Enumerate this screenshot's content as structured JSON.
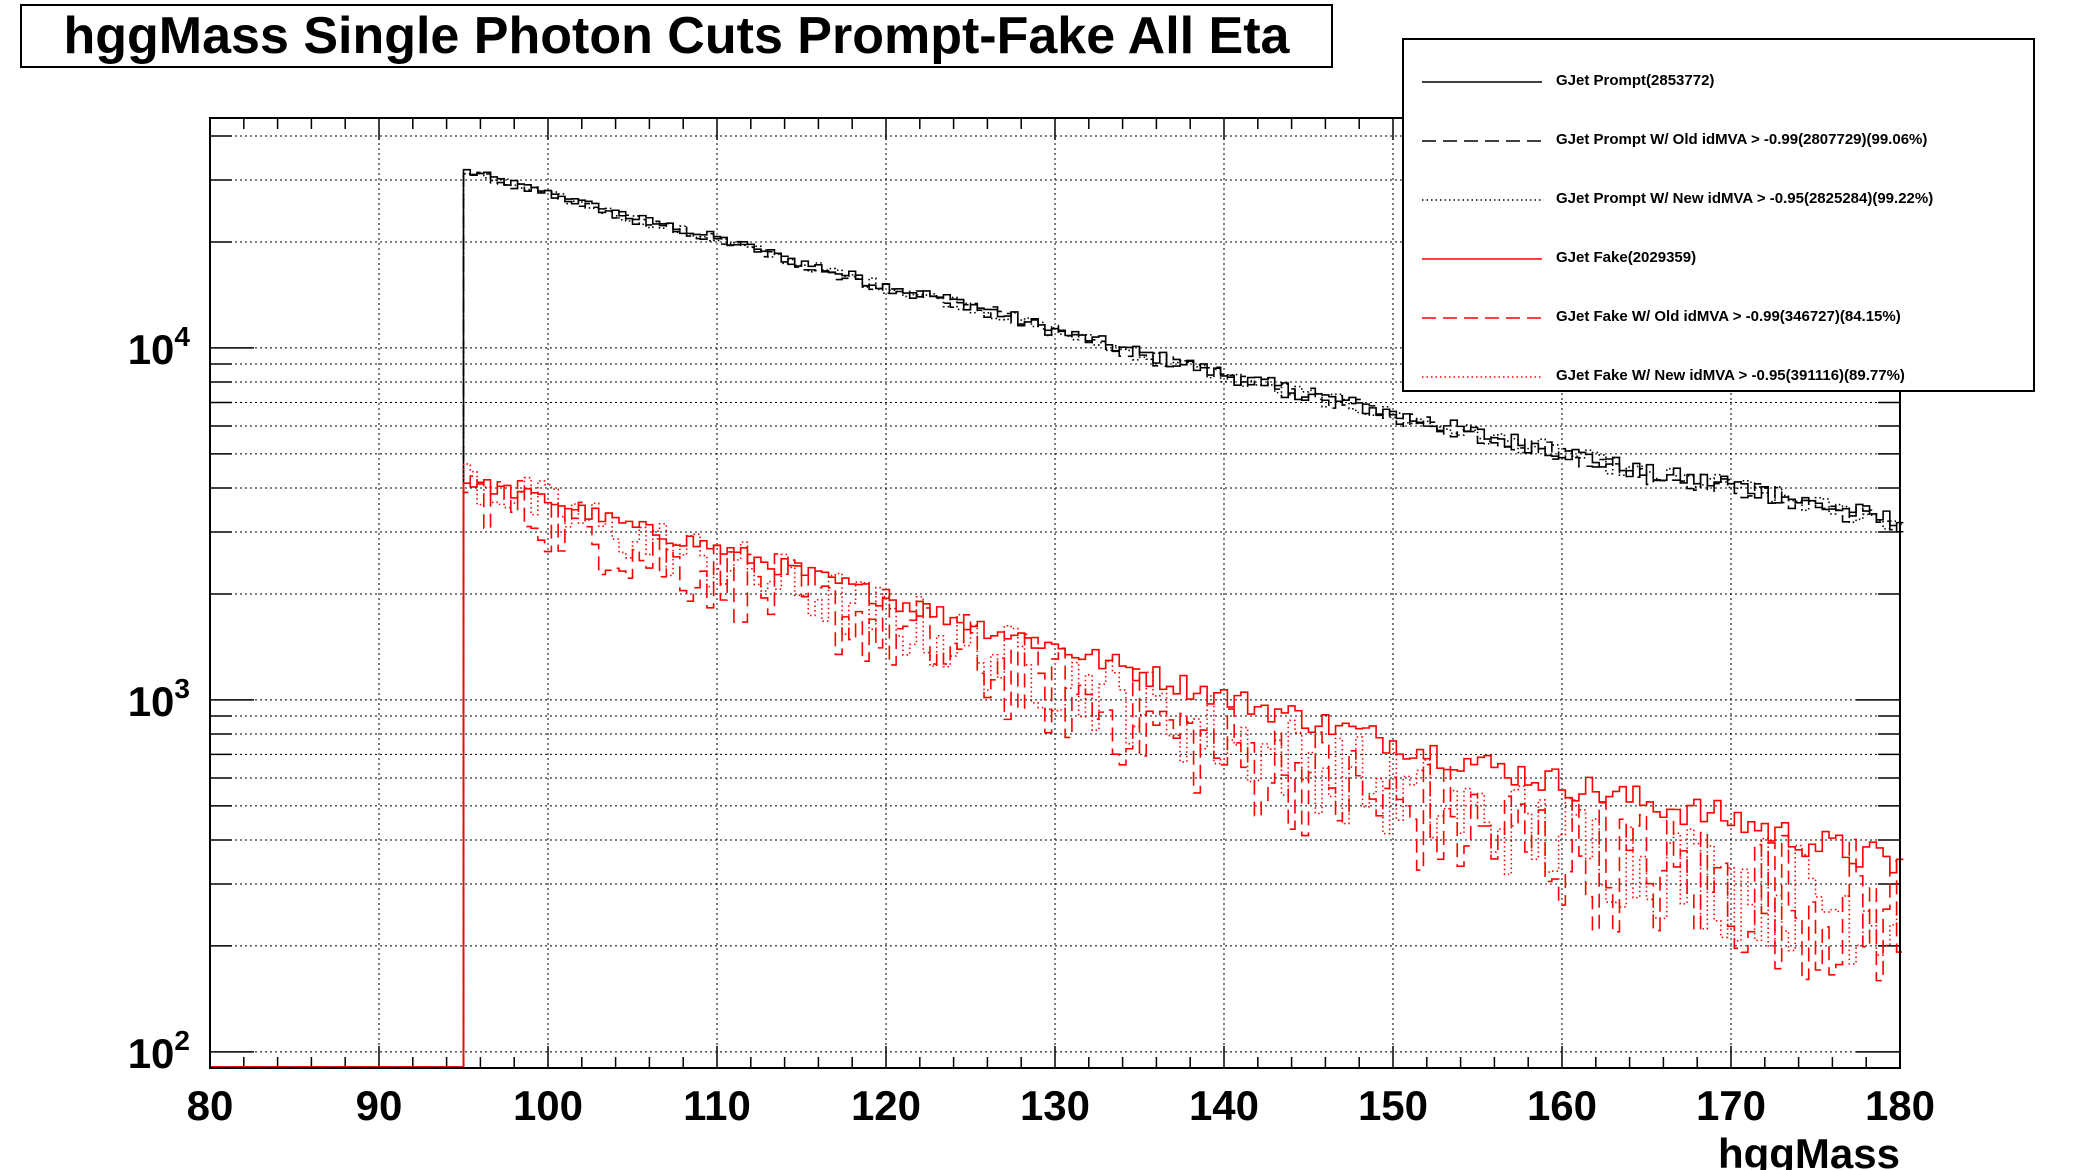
{
  "title": "hggMass Single Photon Cuts Prompt-Fake All Eta",
  "legend": [
    {
      "label": "GJet Prompt(2853772)",
      "color": "#000000",
      "dash": "solid"
    },
    {
      "label": "GJet Prompt W/ Old idMVA > -0.99(2807729)(99.06%)",
      "color": "#000000",
      "dash": "dashed"
    },
    {
      "label": "GJet Prompt W/ New idMVA > -0.95(2825284)(99.22%)",
      "color": "#000000",
      "dash": "dotted"
    },
    {
      "label": "GJet Fake(2029359)",
      "color": "#ff0000",
      "dash": "solid"
    },
    {
      "label": "GJet Fake W/ Old idMVA > -0.99(346727)(84.15%)",
      "color": "#ff0000",
      "dash": "dashed"
    },
    {
      "label": "GJet Fake W/ New idMVA > -0.95(391116)(89.77%)",
      "color": "#ff0000",
      "dash": "dotted"
    }
  ],
  "chart_data": {
    "type": "line",
    "title": "hggMass Single Photon Cuts Prompt-Fake All Eta",
    "xlabel": "hggMass",
    "ylabel": "",
    "xlim": [
      80,
      180
    ],
    "ylim": [
      90,
      45000
    ],
    "yscale": "log",
    "grid": true,
    "legend_position": "top-right",
    "x_ticks": [
      "80",
      "90",
      "100",
      "110",
      "120",
      "130",
      "140",
      "150",
      "160",
      "170",
      "180"
    ],
    "y_ticks": [
      {
        "base": "10",
        "exp": "2",
        "value": 100
      },
      {
        "base": "10",
        "exp": "3",
        "value": 1000
      },
      {
        "base": "10",
        "exp": "4",
        "value": 10000
      }
    ],
    "histogram_range": [
      95,
      180
    ],
    "x": [
      95,
      100,
      105,
      110,
      115,
      120,
      125,
      130,
      135,
      140,
      145,
      150,
      155,
      160,
      165,
      170,
      175,
      180
    ],
    "series": [
      {
        "name": "GJet Prompt(2853772)",
        "color": "#000000",
        "dash": "solid",
        "values": [
          32000,
          27500,
          23500,
          20500,
          17500,
          15000,
          13300,
          11200,
          9700,
          8400,
          7400,
          6500,
          5700,
          5100,
          4400,
          4100,
          3600,
          3200
        ]
      },
      {
        "name": "GJet Prompt W/ Old idMVA > -0.99(2807729)(99.06%)",
        "color": "#000000",
        "dash": "dashed",
        "values": [
          31700,
          27200,
          23300,
          20300,
          17300,
          14850,
          13150,
          11100,
          9600,
          8300,
          7330,
          6440,
          5650,
          5050,
          4360,
          4060,
          3560,
          3170
        ]
      },
      {
        "name": "GJet Prompt W/ New idMVA > -0.95(2825284)(99.22%)",
        "color": "#000000",
        "dash": "dotted",
        "values": [
          31750,
          27290,
          23330,
          20340,
          17360,
          14880,
          13200,
          11120,
          9620,
          8330,
          7340,
          6450,
          5660,
          5060,
          4370,
          4070,
          3570,
          3180
        ]
      },
      {
        "name": "GJet Fake(2029359)",
        "color": "#ff0000",
        "dash": "solid",
        "values": [
          4200,
          3700,
          3100,
          2700,
          2300,
          1950,
          1650,
          1420,
          1200,
          1020,
          880,
          760,
          660,
          580,
          510,
          460,
          390,
          340
        ]
      },
      {
        "name": "GJet Fake W/ Old idMVA > -0.99(346727)(84.15%)",
        "color": "#ff0000",
        "dash": "dashed",
        "values": [
          4000,
          3250,
          2650,
          2250,
          1880,
          1580,
          1290,
          1060,
          870,
          700,
          600,
          490,
          420,
          370,
          320,
          290,
          260,
          240
        ]
      },
      {
        "name": "GJet Fake W/ New idMVA > -0.95(391116)(89.77%)",
        "color": "#ff0000",
        "dash": "dotted",
        "values": [
          4300,
          3500,
          2900,
          2450,
          2050,
          1700,
          1400,
          1160,
          960,
          780,
          660,
          540,
          460,
          400,
          345,
          300,
          270,
          250
        ]
      }
    ]
  }
}
